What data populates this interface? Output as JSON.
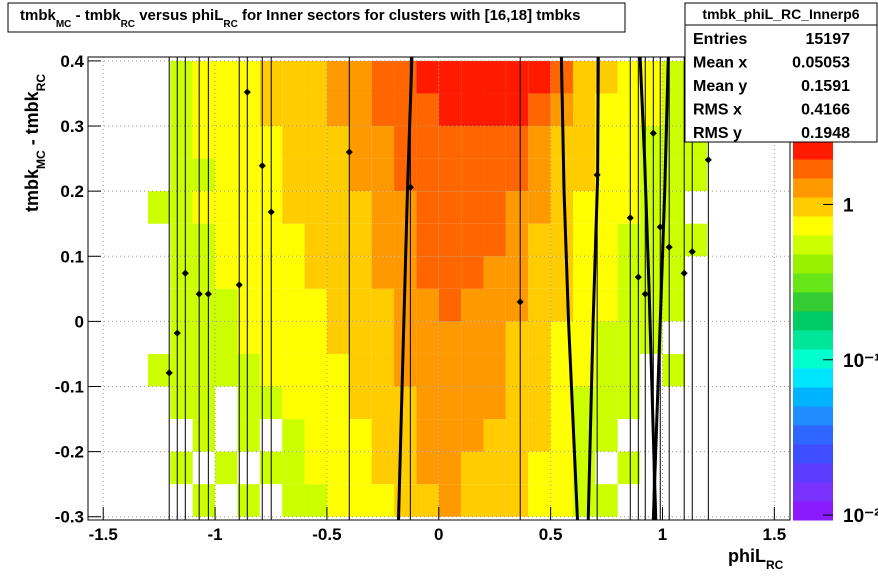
{
  "chart_data": {
    "type": "heatmap",
    "title": [
      "tmbk",
      "MC",
      " - tmbk",
      "RC",
      " versus phiL",
      "RC",
      " for Inner sectors for clusters with [16,18] tmbks"
    ],
    "xlabel": [
      "phiL",
      "RC"
    ],
    "ylabel": [
      "tmbk",
      "MC",
      " - tmbk",
      "RC"
    ],
    "xlim": [
      -1.568,
      1.57
    ],
    "ylim": [
      -0.305,
      0.406
    ],
    "xticks": [
      -1.5,
      -1,
      -0.5,
      0,
      0.5,
      1,
      1.5
    ],
    "yticks": [
      -0.3,
      -0.2,
      -0.1,
      0,
      0.1,
      0.2,
      0.3,
      0.4
    ],
    "grid": true,
    "zlog": true,
    "zlim": [
      0.0093,
      2.6
    ],
    "zticks": [
      {
        "value": 0.01,
        "label": "10⁻²"
      },
      {
        "value": 0.1,
        "label": "10⁻¹"
      },
      1
    ],
    "palette": [
      "#8c1aff",
      "#7a33ff",
      "#5c3dff",
      "#3d4dff",
      "#2e66ff",
      "#1f8cff",
      "#00b3ff",
      "#00e6ff",
      "#00ffcc",
      "#00e699",
      "#00cc66",
      "#33cc33",
      "#66e619",
      "#99f000",
      "#ccff00",
      "#ffff00",
      "#ffcc00",
      "#ff9900",
      "#ff6600",
      "#ff1a00"
    ],
    "xbins": [
      -1.3,
      -1.2,
      -1.1,
      -1.0,
      -0.9,
      -0.8,
      -0.7,
      -0.6,
      -0.5,
      -0.4,
      -0.3,
      -0.2,
      -0.1,
      0,
      0.1,
      0.2,
      0.3,
      0.4,
      0.5,
      0.6,
      0.7,
      0.8,
      0.9,
      1.0,
      1.1,
      1.2,
      1.3
    ],
    "ybins": [
      -0.3,
      -0.25,
      -0.2,
      -0.15,
      -0.1,
      -0.05,
      0,
      0.05,
      0.1,
      0.15,
      0.2,
      0.25,
      0.3,
      0.35,
      0.4
    ],
    "z": [
      [
        null,
        null,
        0.6,
        null,
        0.6,
        null,
        0.6,
        0.6,
        0.7,
        0.7,
        0.8,
        1.0,
        1.1,
        1.2,
        1.1,
        1.0,
        0.9,
        0.8,
        0.7,
        0.6,
        0.6,
        null,
        null,
        null,
        null,
        null
      ],
      [
        null,
        0.6,
        null,
        0.6,
        null,
        0.6,
        0.6,
        0.7,
        0.7,
        0.8,
        0.9,
        1.0,
        1.2,
        1.2,
        1.1,
        1.0,
        1.0,
        0.8,
        0.7,
        0.6,
        null,
        0.6,
        null,
        null,
        null,
        null
      ],
      [
        null,
        null,
        0.6,
        null,
        0.6,
        null,
        0.6,
        0.7,
        0.8,
        0.8,
        0.9,
        1.1,
        1.2,
        1.3,
        1.2,
        1.1,
        1.0,
        0.9,
        0.7,
        0.6,
        0.6,
        null,
        null,
        null,
        null,
        null
      ],
      [
        null,
        0.6,
        0.6,
        null,
        0.6,
        0.6,
        0.7,
        0.7,
        0.8,
        0.9,
        1.0,
        1.1,
        1.3,
        1.3,
        1.2,
        1.2,
        1.0,
        0.9,
        0.8,
        0.6,
        0.6,
        0.6,
        null,
        null,
        null,
        null
      ],
      [
        0.6,
        0.6,
        0.6,
        0.6,
        0.6,
        0.7,
        0.7,
        0.8,
        0.8,
        0.9,
        1.0,
        1.2,
        1.3,
        1.4,
        1.3,
        1.2,
        1.1,
        0.9,
        0.8,
        0.7,
        0.6,
        0.6,
        null,
        0.6,
        null,
        null
      ],
      [
        null,
        0.6,
        0.6,
        0.6,
        0.7,
        0.7,
        0.7,
        0.8,
        0.9,
        0.9,
        1.1,
        1.2,
        1.3,
        1.4,
        1.4,
        1.3,
        1.1,
        1.0,
        0.8,
        0.7,
        0.6,
        0.6,
        0.6,
        null,
        null,
        null
      ],
      [
        null,
        0.6,
        0.6,
        0.6,
        0.7,
        0.7,
        0.8,
        0.8,
        0.9,
        1.0,
        1.1,
        1.3,
        1.4,
        1.5,
        1.4,
        1.3,
        1.2,
        1.0,
        0.9,
        0.7,
        0.7,
        0.6,
        0.6,
        0.6,
        null,
        null
      ],
      [
        null,
        0.6,
        0.6,
        0.7,
        0.7,
        0.7,
        0.8,
        0.9,
        0.9,
        1.0,
        1.2,
        1.3,
        1.5,
        1.6,
        1.5,
        1.4,
        1.2,
        1.1,
        0.9,
        0.8,
        0.7,
        0.6,
        0.6,
        0.6,
        null,
        null
      ],
      [
        null,
        0.6,
        0.6,
        0.7,
        0.7,
        0.8,
        0.8,
        0.9,
        1.0,
        1.1,
        1.2,
        1.4,
        1.5,
        1.6,
        1.6,
        1.5,
        1.3,
        1.1,
        0.9,
        0.8,
        0.7,
        0.6,
        0.6,
        0.6,
        0.6,
        null
      ],
      [
        0.6,
        0.6,
        0.7,
        0.7,
        0.7,
        0.8,
        0.9,
        0.9,
        1.0,
        1.1,
        1.3,
        1.4,
        1.6,
        1.7,
        1.6,
        1.5,
        1.4,
        1.2,
        1.0,
        0.8,
        0.7,
        0.7,
        0.6,
        0.6,
        null,
        null
      ],
      [
        null,
        0.6,
        0.6,
        0.7,
        0.7,
        0.8,
        0.9,
        1.0,
        1.1,
        1.2,
        1.3,
        1.5,
        1.6,
        1.7,
        1.7,
        1.6,
        1.5,
        1.3,
        1.1,
        0.9,
        0.8,
        0.7,
        0.6,
        0.6,
        0.6,
        null
      ],
      [
        null,
        0.6,
        0.7,
        0.7,
        0.8,
        0.8,
        0.9,
        1.0,
        1.1,
        1.2,
        1.4,
        1.5,
        1.7,
        1.8,
        1.8,
        1.7,
        1.6,
        1.4,
        1.1,
        0.9,
        0.8,
        0.7,
        0.6,
        0.6,
        0.6,
        null
      ],
      [
        null,
        0.6,
        0.7,
        0.7,
        0.8,
        0.9,
        0.9,
        1.0,
        1.2,
        1.3,
        1.5,
        1.7,
        1.9,
        2.1,
        2.2,
        2.1,
        2.0,
        1.7,
        1.3,
        1.0,
        0.8,
        0.7,
        0.7,
        0.6,
        null,
        null
      ],
      [
        null,
        0.6,
        0.7,
        0.8,
        0.8,
        0.9,
        1.0,
        1.1,
        1.2,
        1.4,
        1.6,
        1.9,
        2.2,
        2.4,
        2.5,
        2.4,
        2.3,
        2.0,
        1.5,
        1.1,
        0.9,
        0.7,
        0.7,
        0.6,
        0.6,
        null
      ]
    ],
    "points": {
      "x": [
        -1.205,
        -1.169,
        -1.133,
        -1.071,
        -1.03,
        -0.892,
        -0.856,
        -0.789,
        -0.749,
        -0.4,
        -0.127,
        0.364,
        0.708,
        0.856,
        0.892,
        0.923,
        0.959,
        0.99,
        1.03,
        1.097,
        1.133,
        1.205
      ],
      "y": [
        -0.079,
        -0.018,
        0.074,
        0.042,
        0.042,
        0.056,
        0.352,
        0.239,
        0.168,
        0.26,
        0.206,
        0.03,
        0.225,
        0.159,
        0.068,
        0.042,
        0.289,
        0.145,
        0.114,
        0.074,
        0.107,
        0.248
      ]
    },
    "curves": [
      {
        "x": [
          -0.18,
          -0.16,
          -0.14,
          -0.12
        ],
        "y": [
          -0.305,
          -0.05,
          0.2,
          0.406
        ]
      },
      {
        "x": [
          0.62,
          0.58,
          0.56,
          0.548
        ],
        "y": [
          -0.305,
          0,
          0.2,
          0.406
        ]
      },
      {
        "x": [
          0.668,
          0.69,
          0.71,
          0.713
        ],
        "y": [
          -0.305,
          0,
          0.22,
          0.406
        ]
      },
      {
        "x": [
          0.97,
          0.94,
          0.92,
          0.9
        ],
        "y": [
          -0.305,
          0.05,
          0.25,
          0.406
        ]
      },
      {
        "x": [
          0.959,
          0.99,
          1.01,
          1.026
        ],
        "y": [
          -0.305,
          0,
          0.2,
          0.406
        ]
      }
    ],
    "stats": {
      "title": "tmbk_phiL_RC_Innerp6",
      "rows": [
        [
          "Entries",
          15197
        ],
        [
          "Mean x",
          0.05053
        ],
        [
          "Mean y",
          0.1591
        ],
        [
          "RMS x",
          0.4166
        ],
        [
          "RMS y",
          0.1948
        ]
      ]
    }
  }
}
